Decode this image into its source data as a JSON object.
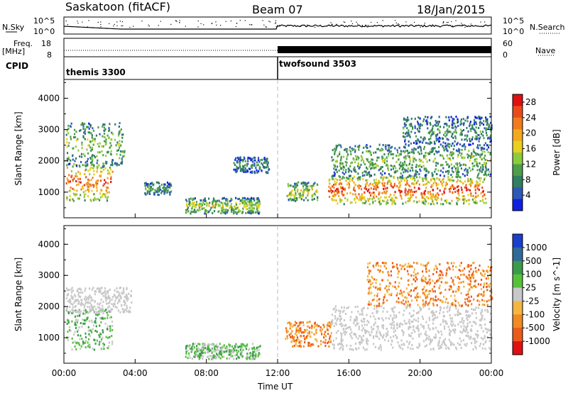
{
  "header": {
    "station": "Saskatoon (fitACF)",
    "beam": "Beam 07",
    "date": "18/Jan/2015"
  },
  "top_panels": {
    "nsky_label": "N.Sky",
    "nsky_ticks": [
      "10^5",
      "10^0"
    ],
    "nsearch_label": "N.Search",
    "nsearch_ticks": [
      "10^5",
      "10^0"
    ],
    "freq_label": "Freq.",
    "freq_unit": "[MHz]",
    "freq_ticks": [
      "18",
      "8"
    ],
    "nave_label": "Nave",
    "nave_ticks": [
      "60",
      "0"
    ],
    "cpid_label": "CPID",
    "cpid_modes": [
      {
        "name": "themis 3300",
        "start_hour": 0
      },
      {
        "name": "twofsound 3503",
        "start_hour": 12
      }
    ]
  },
  "chart_data": [
    {
      "type": "heatmap",
      "panel": "power",
      "ylabel": "Slant Range [km]",
      "xlabel": "Time UT",
      "x_ticks": [
        "00:00",
        "04:00",
        "08:00",
        "12:00",
        "16:00",
        "20:00",
        "00:00"
      ],
      "y_ticks": [
        1000,
        2000,
        3000,
        4000
      ],
      "ylim": [
        180,
        4600
      ],
      "xlim_hours": [
        0,
        24
      ],
      "colorbar": {
        "label": "Power [dB]",
        "ticks": [
          4,
          8,
          12,
          16,
          20,
          24,
          28
        ],
        "range": [
          0,
          30
        ],
        "colors": [
          "#1020e0",
          "#2e58b8",
          "#2f7f60",
          "#4f9e4a",
          "#8ccc3a",
          "#e8d020",
          "#f3a81e",
          "#f07a1c",
          "#ea4a1a",
          "#e01010"
        ]
      },
      "regions": [
        {
          "t0": 0.1,
          "t1": 2.7,
          "r0": 700,
          "r1": 1900,
          "level": 0.85
        },
        {
          "t0": 0.1,
          "t1": 3.4,
          "r0": 1800,
          "r1": 3200,
          "level": 0.45
        },
        {
          "t0": 4.5,
          "t1": 6.0,
          "r0": 900,
          "r1": 1300,
          "level": 0.35
        },
        {
          "t0": 6.8,
          "t1": 11.0,
          "r0": 300,
          "r1": 800,
          "level": 0.5
        },
        {
          "t0": 9.5,
          "t1": 11.5,
          "r0": 1600,
          "r1": 2100,
          "level": 0.3
        },
        {
          "t0": 12.5,
          "t1": 14.2,
          "r0": 700,
          "r1": 1300,
          "level": 0.55
        },
        {
          "t0": 14.8,
          "t1": 23.7,
          "r0": 600,
          "r1": 1500,
          "level": 0.9
        },
        {
          "t0": 15.0,
          "t1": 24.0,
          "r0": 1500,
          "r1": 2500,
          "level": 0.45
        },
        {
          "t0": 19.0,
          "t1": 24.0,
          "r0": 2500,
          "r1": 3400,
          "level": 0.3
        }
      ]
    },
    {
      "type": "heatmap",
      "panel": "velocity",
      "ylabel": "Slant Range [km]",
      "xlabel": "Time UT",
      "x_ticks": [
        "00:00",
        "04:00",
        "08:00",
        "12:00",
        "16:00",
        "20:00",
        "00:00"
      ],
      "y_ticks": [
        1000,
        2000,
        3000,
        4000
      ],
      "ylim": [
        180,
        4600
      ],
      "xlim_hours": [
        0,
        24
      ],
      "colorbar": {
        "label": "Velocity [m s^-1]",
        "ticks": [
          "1000",
          "500",
          "100",
          "25",
          "-25",
          "-100",
          "-500",
          "-1000"
        ],
        "colors": [
          "#1a3fcc",
          "#2e6a99",
          "#3a9c4a",
          "#56c23a",
          "#c8c8c8",
          "#f4b640",
          "#f08a22",
          "#ec5a1a",
          "#e01010"
        ]
      },
      "regions": [
        {
          "t0": 0.1,
          "t1": 2.7,
          "r0": 600,
          "r1": 1900,
          "level": "positive"
        },
        {
          "t0": 0.1,
          "t1": 3.8,
          "r0": 1800,
          "r1": 2600,
          "level": "ground"
        },
        {
          "t0": 6.8,
          "t1": 11.0,
          "r0": 300,
          "r1": 800,
          "level": "positive"
        },
        {
          "t0": 12.4,
          "t1": 15.0,
          "r0": 700,
          "r1": 1500,
          "level": "negative"
        },
        {
          "t0": 15.0,
          "t1": 24.0,
          "r0": 600,
          "r1": 2000,
          "level": "ground"
        },
        {
          "t0": 17.0,
          "t1": 24.0,
          "r0": 2000,
          "r1": 3400,
          "level": "negative"
        }
      ]
    }
  ]
}
